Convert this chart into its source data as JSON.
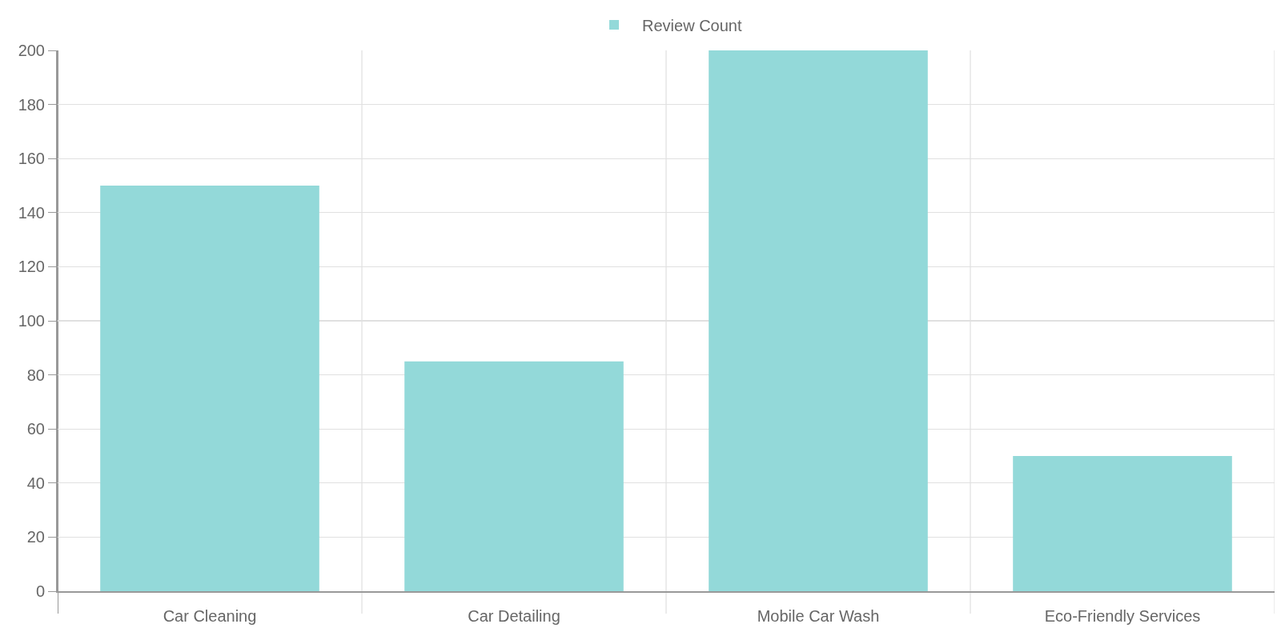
{
  "chart_data": {
    "type": "bar",
    "categories": [
      "Car Cleaning",
      "Car Detailing",
      "Mobile Car Wash",
      "Eco-Friendly Services"
    ],
    "series": [
      {
        "name": "Review Count",
        "color": "#93d9d9",
        "values": [
          150,
          85,
          200,
          50
        ]
      }
    ],
    "ylim": [
      0,
      200
    ],
    "yticks": [
      0,
      20,
      40,
      60,
      80,
      100,
      120,
      140,
      160,
      180,
      200
    ],
    "grid": true,
    "legend": "top"
  }
}
